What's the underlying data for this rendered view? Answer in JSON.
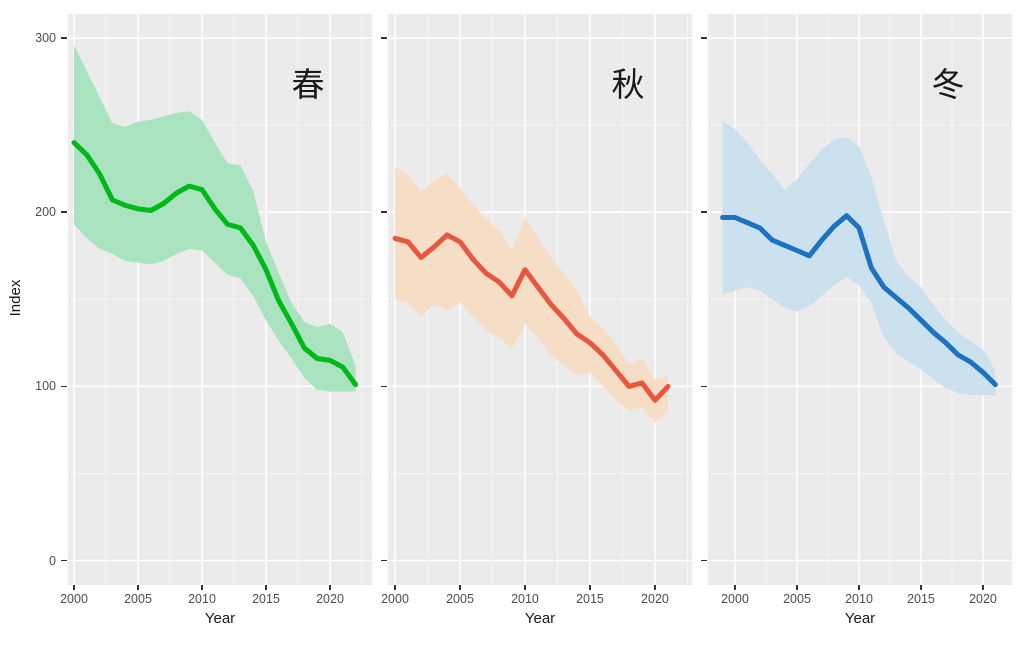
{
  "figure": {
    "bg": "#FFFFFF",
    "panel_bg": "#EBEBEB",
    "grid_major": "#FFFFFF",
    "grid_minor": "#FFFFFF",
    "tick_color": "#333333",
    "axis_text_color": "#4D4D4D",
    "axis_title_color": "#1A1A1A"
  },
  "y_axis": {
    "title": "Index",
    "ticks": [
      0,
      100,
      200,
      300
    ],
    "minor_ticks": [
      50,
      150,
      250
    ],
    "range": [
      -14.06,
      313.84
    ]
  },
  "x_axis": {
    "title": "Year",
    "ticks": [
      2000,
      2005,
      2010,
      2015,
      2020
    ],
    "minor_ticks": [
      1997.5,
      2002.5,
      2007.5,
      2012.5,
      2017.5,
      2022.5
    ]
  },
  "chart_data": [
    {
      "type": "line",
      "facet_label": "春",
      "line_color": "#00B818",
      "ribbon_color": "#A9E3BF",
      "xlim": [
        1999.53,
        2023.28
      ],
      "ylim": [
        -14.06,
        313.84
      ],
      "xlabel": "Year",
      "ylabel": "Index",
      "years": [
        2000,
        2001,
        2002,
        2003,
        2004,
        2005,
        2006,
        2007,
        2008,
        2009,
        2010,
        2011,
        2012,
        2013,
        2014,
        2015,
        2016,
        2017,
        2018,
        2019,
        2020,
        2021,
        2022
      ],
      "values": [
        240,
        233,
        222,
        207,
        204,
        202,
        201,
        205,
        211,
        215,
        213,
        202,
        193,
        191,
        181,
        167,
        149,
        136,
        122,
        116,
        115,
        111,
        101
      ],
      "upper": [
        296,
        281,
        266,
        251,
        249,
        252,
        253,
        255,
        257,
        258,
        253,
        240,
        228,
        227,
        212,
        183,
        165,
        148,
        137,
        134,
        136,
        131,
        112
      ],
      "lower": [
        193,
        185,
        179,
        176,
        172,
        171,
        170,
        172,
        176,
        179,
        178,
        171,
        164,
        162,
        152,
        138,
        126,
        116,
        105,
        98,
        97,
        97,
        97
      ]
    },
    {
      "type": "line",
      "facet_label": "秋",
      "line_color": "#E8563E",
      "ribbon_color": "#F5DEC5",
      "xlim": [
        1999.46,
        2022.85
      ],
      "ylim": [
        -14.06,
        313.84
      ],
      "xlabel": "Year",
      "ylabel": "Index",
      "years": [
        2000,
        2001,
        2002,
        2003,
        2004,
        2005,
        2006,
        2007,
        2008,
        2009,
        2010,
        2011,
        2012,
        2013,
        2014,
        2015,
        2016,
        2017,
        2018,
        2019,
        2020,
        2021
      ],
      "values": [
        185,
        183,
        174,
        180,
        187,
        183,
        173,
        165,
        160,
        152,
        167,
        157,
        147,
        139,
        130,
        125,
        118,
        109,
        100,
        102,
        92,
        100
      ],
      "upper": [
        226,
        221,
        212,
        218,
        222,
        214,
        204,
        196,
        190,
        178,
        197,
        185,
        174,
        165,
        155,
        140,
        133,
        124,
        113,
        116,
        104,
        106
      ],
      "lower": [
        150,
        148,
        140,
        147,
        144,
        148,
        140,
        132,
        128,
        122,
        136,
        128,
        118,
        112,
        106,
        108,
        100,
        92,
        86,
        88,
        79,
        86
      ]
    },
    {
      "type": "line",
      "facet_label": "冬",
      "line_color": "#1B71C2",
      "ribbon_color": "#CCE1EE",
      "xlim": [
        1997.82,
        2022.34
      ],
      "ylim": [
        -14.06,
        313.84
      ],
      "xlabel": "Year",
      "ylabel": "Index",
      "years": [
        1999,
        2000,
        2001,
        2002,
        2003,
        2004,
        2005,
        2006,
        2007,
        2008,
        2009,
        2010,
        2011,
        2012,
        2013,
        2014,
        2015,
        2016,
        2017,
        2018,
        2019,
        2020,
        2021
      ],
      "values": [
        197,
        197,
        194,
        191,
        184,
        181,
        178,
        175,
        184,
        192,
        198,
        191,
        168,
        157,
        151,
        145,
        138,
        131,
        125,
        118,
        114,
        108,
        101
      ],
      "upper": [
        252,
        248,
        240,
        230,
        222,
        213,
        219,
        228,
        236,
        242,
        243,
        238,
        220,
        195,
        172,
        163,
        157,
        147,
        138,
        131,
        126,
        121,
        109
      ],
      "lower": [
        153,
        155,
        157,
        155,
        150,
        145,
        143,
        146,
        152,
        158,
        163,
        158,
        148,
        128,
        119,
        114,
        110,
        104,
        99,
        96,
        95,
        95,
        95
      ]
    }
  ]
}
